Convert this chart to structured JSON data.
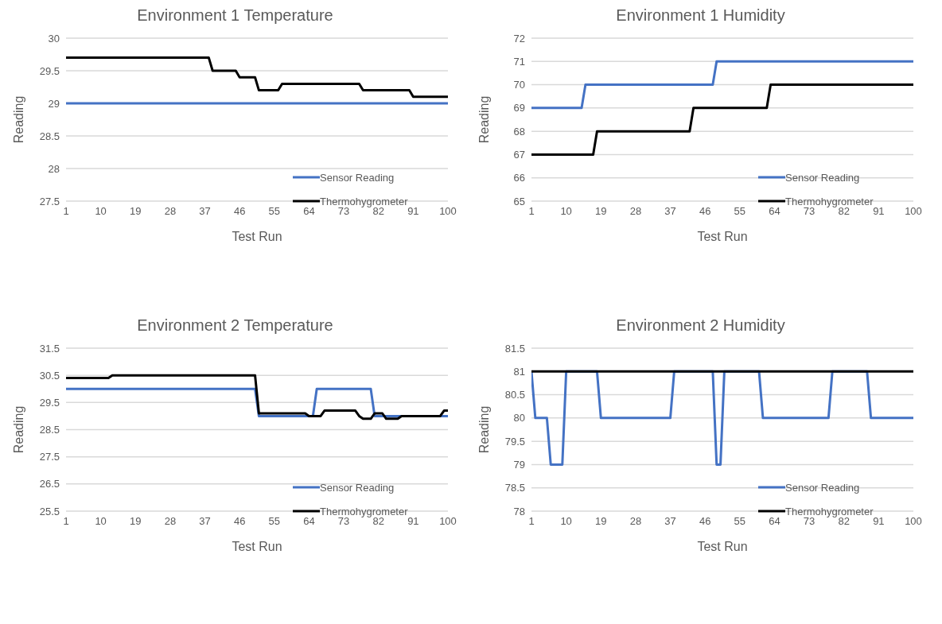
{
  "chart_data": [
    {
      "type": "line",
      "title": "Environment 1 Temperature",
      "xlabel": "Test Run",
      "ylabel": "Reading",
      "xlim": [
        1,
        100
      ],
      "xticks": [
        1,
        10,
        19,
        28,
        37,
        46,
        55,
        64,
        73,
        82,
        91,
        100
      ],
      "ylim": [
        27.5,
        30
      ],
      "yticks": [
        27.5,
        28,
        28.5,
        29,
        29.5,
        30
      ],
      "grid": "y",
      "legend": "right",
      "marker": "none",
      "series": [
        {
          "name": "Sensor Reading",
          "color": "#4472c4",
          "x": [
            1,
            100
          ],
          "values": [
            29,
            29
          ]
        },
        {
          "name": "Thermohygrometer",
          "color": "#000000",
          "x": [
            1,
            38,
            39,
            45,
            46,
            50,
            51,
            56,
            57,
            77,
            78,
            90,
            91,
            100
          ],
          "values": [
            29.7,
            29.7,
            29.5,
            29.5,
            29.4,
            29.4,
            29.2,
            29.2,
            29.3,
            29.3,
            29.2,
            29.2,
            29.1,
            29.1
          ]
        }
      ]
    },
    {
      "type": "line",
      "title": "Environment 1 Humidity",
      "xlabel": "Test Run",
      "ylabel": "Reading",
      "xlim": [
        1,
        100
      ],
      "xticks": [
        1,
        10,
        19,
        28,
        37,
        46,
        55,
        64,
        73,
        82,
        91,
        100
      ],
      "ylim": [
        65,
        72
      ],
      "yticks": [
        65,
        66,
        67,
        68,
        69,
        70,
        71,
        72
      ],
      "grid": "y",
      "legend": "right",
      "marker": "none",
      "series": [
        {
          "name": "Sensor Reading",
          "color": "#4472c4",
          "x": [
            1,
            14,
            15,
            48,
            49,
            100
          ],
          "values": [
            69,
            69,
            70,
            70,
            71,
            71
          ]
        },
        {
          "name": "Thermohygrometer",
          "color": "#000000",
          "x": [
            1,
            17,
            18,
            42,
            43,
            62,
            63,
            100
          ],
          "values": [
            67,
            67,
            68,
            68,
            69,
            69,
            70,
            70
          ]
        }
      ]
    },
    {
      "type": "line",
      "title": "Environment 2 Temperature",
      "xlabel": "Test Run",
      "ylabel": "Reading",
      "xlim": [
        1,
        100
      ],
      "xticks": [
        1,
        10,
        19,
        28,
        37,
        46,
        55,
        64,
        73,
        82,
        91,
        100
      ],
      "ylim": [
        25.5,
        31.5
      ],
      "yticks": [
        25.5,
        26.5,
        27.5,
        28.5,
        29.5,
        30.5,
        31.5
      ],
      "grid": "y",
      "legend": "right",
      "marker": "none",
      "series": [
        {
          "name": "Sensor Reading",
          "color": "#4472c4",
          "x": [
            1,
            50,
            51,
            65,
            66,
            80,
            81,
            100
          ],
          "values": [
            30,
            30,
            29,
            29,
            30,
            30,
            29,
            29
          ]
        },
        {
          "name": "Thermohygrometer",
          "color": "#000000",
          "x": [
            1,
            12,
            13,
            50,
            51,
            63,
            64,
            67,
            68,
            76,
            77,
            78,
            80,
            81,
            83,
            84,
            87,
            88,
            98,
            99,
            100
          ],
          "values": [
            30.4,
            30.4,
            30.5,
            30.5,
            29.1,
            29.1,
            29,
            29,
            29.2,
            29.2,
            29,
            28.9,
            28.9,
            29.1,
            29.1,
            28.9,
            28.9,
            29,
            29,
            29.2,
            29.2
          ]
        }
      ]
    },
    {
      "type": "line",
      "title": "Environment 2 Humidity",
      "xlabel": "Test Run",
      "ylabel": "Reading",
      "xlim": [
        1,
        100
      ],
      "xticks": [
        1,
        10,
        19,
        28,
        37,
        46,
        55,
        64,
        73,
        82,
        91,
        100
      ],
      "ylim": [
        78,
        81.5
      ],
      "yticks": [
        78,
        78.5,
        79,
        79.5,
        80,
        80.5,
        81,
        81.5
      ],
      "grid": "y",
      "legend": "right",
      "marker": "none",
      "series": [
        {
          "name": "Sensor Reading",
          "color": "#4472c4",
          "x": [
            1,
            2,
            5,
            6,
            9,
            10,
            18,
            19,
            37,
            38,
            48,
            49,
            50,
            51,
            60,
            61,
            78,
            79,
            88,
            89,
            100
          ],
          "values": [
            81,
            80,
            80,
            79,
            79,
            81,
            81,
            80,
            80,
            81,
            81,
            79,
            79,
            81,
            81,
            80,
            80,
            81,
            81,
            80,
            80
          ]
        },
        {
          "name": "Thermohygrometer",
          "color": "#000000",
          "x": [
            1,
            100
          ],
          "values": [
            81,
            81
          ]
        }
      ]
    }
  ]
}
